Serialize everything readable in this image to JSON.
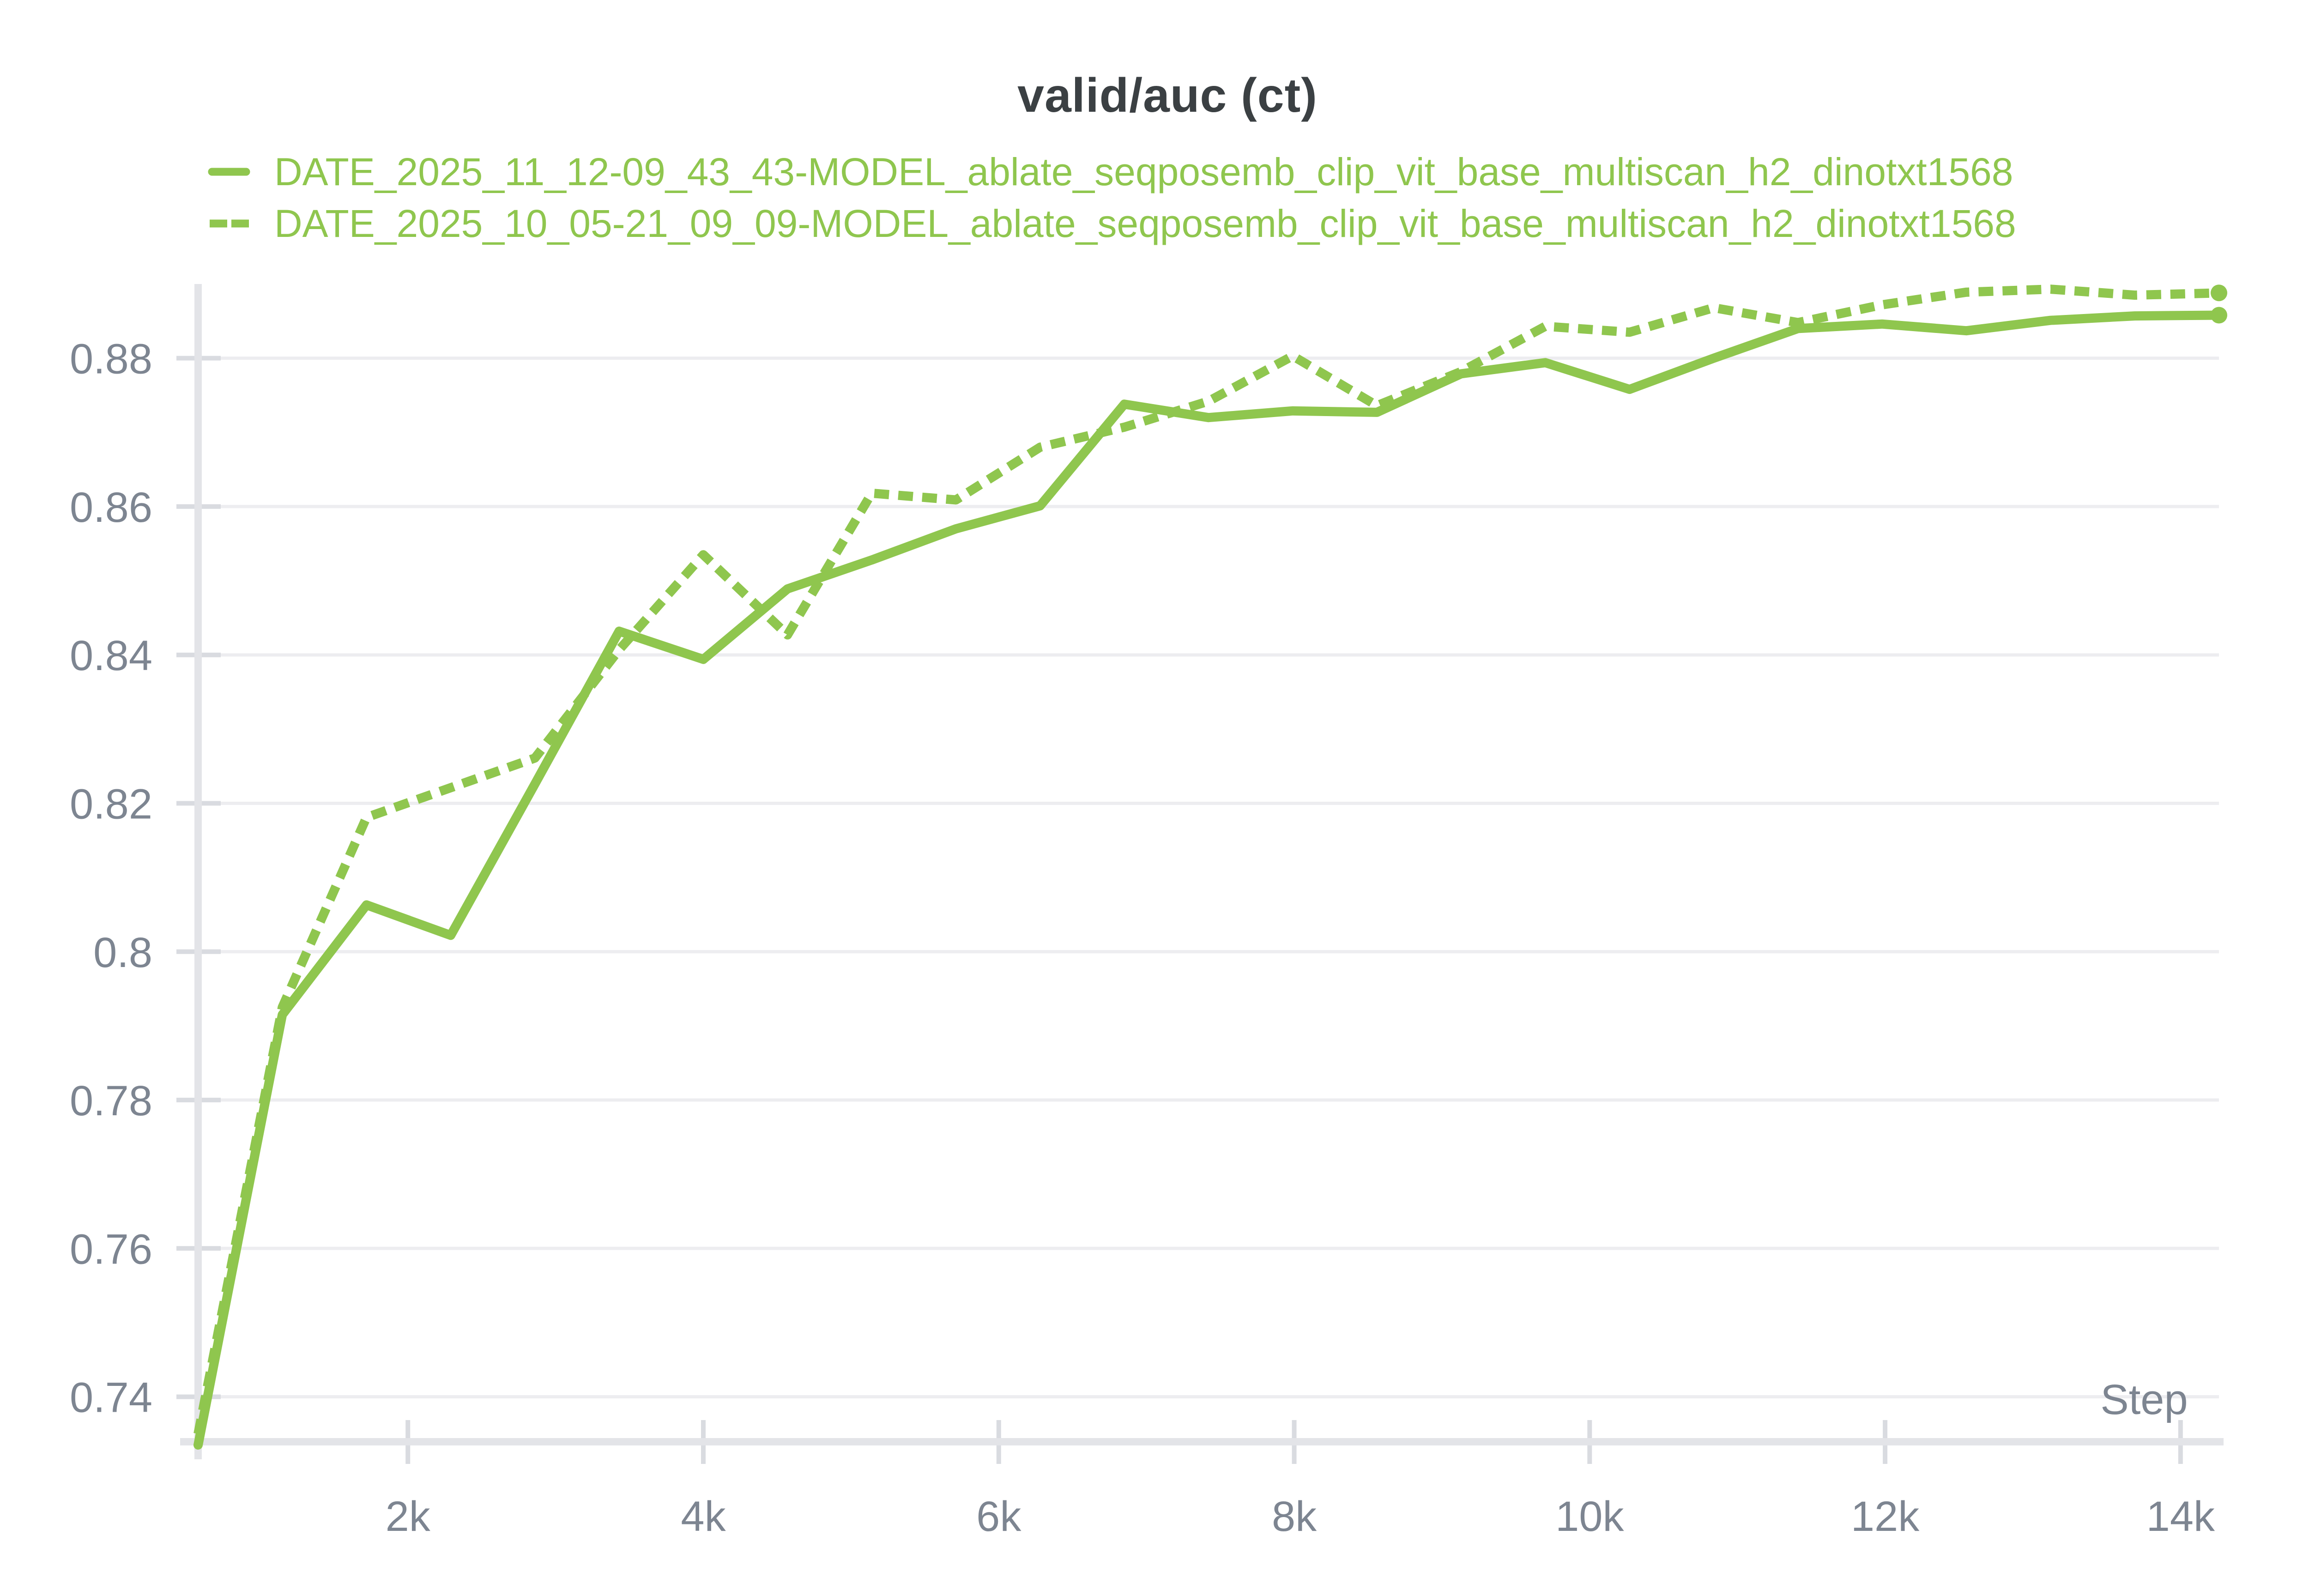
{
  "chart_data": {
    "type": "line",
    "title": "valid/auc (ct)",
    "xlabel": "Step",
    "ylabel": "",
    "legend_position": "top-left",
    "grid": "horizontal",
    "x": [
      580,
      1150,
      1720,
      2290,
      2860,
      3430,
      4000,
      4570,
      5140,
      5710,
      6280,
      6850,
      7420,
      7990,
      8560,
      9130,
      9700,
      10270,
      10840,
      11410,
      11980,
      12550,
      13120,
      13690,
      14260
    ],
    "series": [
      {
        "name": "DATE_2025_11_12-09_43_43-MODEL_ablate_seqposemb_clip_vit_base_multiscan_h2_dinotxt1568",
        "style": "solid",
        "end_marker": true,
        "values": [
          0.7335,
          0.7915,
          0.8063,
          0.8022,
          0.8226,
          0.8432,
          0.8394,
          0.8489,
          0.8528,
          0.857,
          0.8601,
          0.8738,
          0.872,
          0.8729,
          0.8727,
          0.8779,
          0.8794,
          0.8758,
          0.88,
          0.884,
          0.8846,
          0.8837,
          0.8851,
          0.8857,
          0.8858
        ]
      },
      {
        "name": "DATE_2025_10_05-21_09_09-MODEL_ablate_seqposemb_clip_vit_base_multiscan_h2_dinotxt1568",
        "style": "dashed",
        "end_marker": true,
        "values": [
          0.735,
          0.7925,
          0.8181,
          0.8221,
          0.8261,
          0.8407,
          0.8535,
          0.8427,
          0.8618,
          0.8609,
          0.868,
          0.8707,
          0.8742,
          0.8803,
          0.8736,
          0.8782,
          0.8843,
          0.8835,
          0.8868,
          0.8848,
          0.8872,
          0.8889,
          0.8893,
          0.8885,
          0.8888
        ]
      }
    ],
    "xticks": {
      "values": [
        2000,
        4000,
        6000,
        8000,
        10000,
        12000,
        14000
      ],
      "labels": [
        "2k",
        "4k",
        "6k",
        "8k",
        "10k",
        "12k",
        "14k"
      ]
    },
    "yticks": {
      "values": [
        0.74,
        0.76,
        0.78,
        0.8,
        0.82,
        0.84,
        0.86,
        0.88
      ],
      "labels": [
        "0.74",
        "0.76",
        "0.78",
        "0.8",
        "0.82",
        "0.84",
        "0.86",
        "0.88"
      ]
    },
    "xlim": [
      580,
      14260
    ],
    "ylim": [
      0.7335,
      0.89
    ],
    "colors": {
      "accent": "#8FC64E",
      "title": "#3B4043",
      "tick_label": "#7D8591",
      "grid": "#EDEDF0",
      "axis": "#E3E4E8",
      "tick": "#D9DBE0"
    }
  }
}
